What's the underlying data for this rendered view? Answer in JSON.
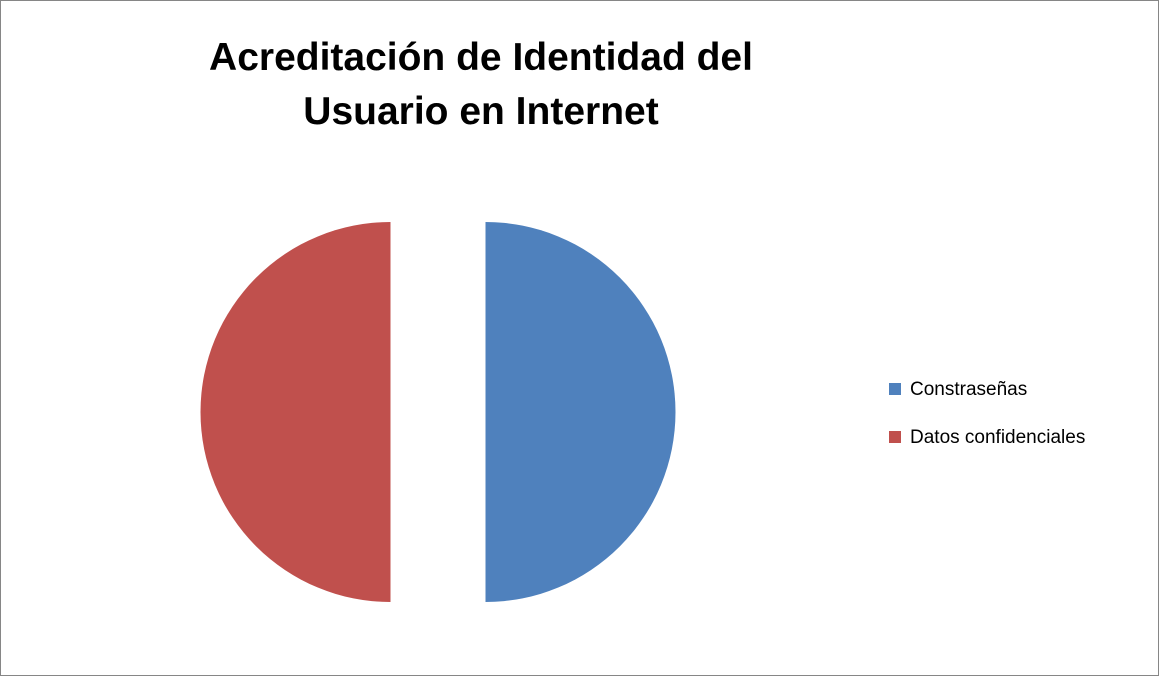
{
  "chart_data": {
    "type": "pie",
    "title": "Acreditación de Identidad del Usuario en Internet",
    "categories": [
      "Constraseñas",
      "Datos confidenciales"
    ],
    "values": [
      50,
      50
    ],
    "colors": [
      "#4f81bd",
      "#c0504d"
    ],
    "exploded": true,
    "legend": "right"
  }
}
